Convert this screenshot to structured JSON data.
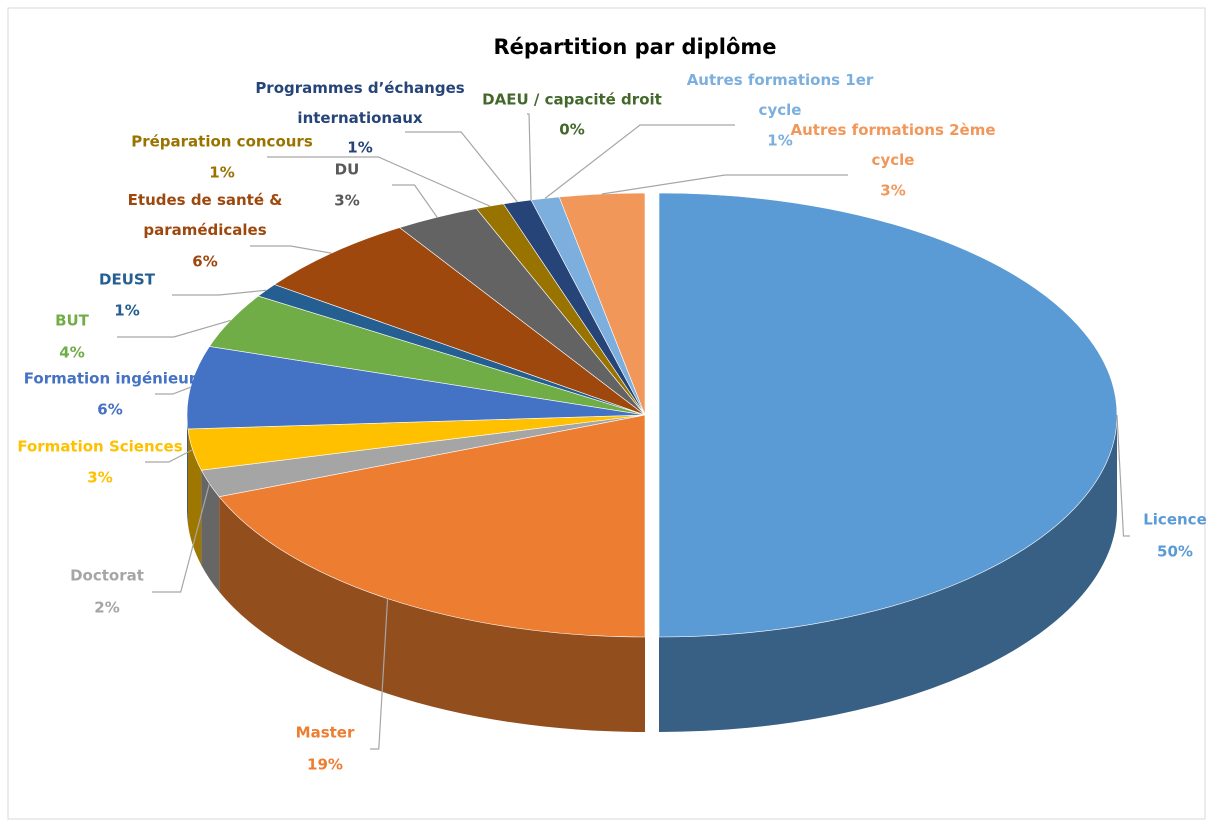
{
  "chart_data": {
    "type": "pie",
    "title": "Répartition par diplôme",
    "categories": [
      "Licence",
      "Master",
      "Doctorat",
      "Formation Sciences",
      "Formation ingénieur",
      "BUT",
      "DEUST",
      "Etudes de santé & paramédicales",
      "DU",
      "Préparation concours",
      "Programmes d’échanges internationaux",
      "DAEU / capacité droit",
      "Autres formations 1er cycle",
      "Autres formations 2ème cycle"
    ],
    "values": [
      50,
      19,
      2,
      3,
      6,
      4,
      1,
      6,
      3,
      1,
      1,
      0,
      1,
      3
    ],
    "value_labels": [
      "50%",
      "19%",
      "2%",
      "3%",
      "6%",
      "4%",
      "1%",
      "6%",
      "3%",
      "1%",
      "1%",
      "0%",
      "1%",
      "3%"
    ],
    "colors": [
      "#5b9bd5",
      "#ed7d31",
      "#a5a5a5",
      "#ffc000",
      "#4472c4",
      "#70ad47",
      "#255e91",
      "#9e480e",
      "#636363",
      "#997300",
      "#264478",
      "#43682b",
      "#7cafdd",
      "#f1975a"
    ]
  }
}
